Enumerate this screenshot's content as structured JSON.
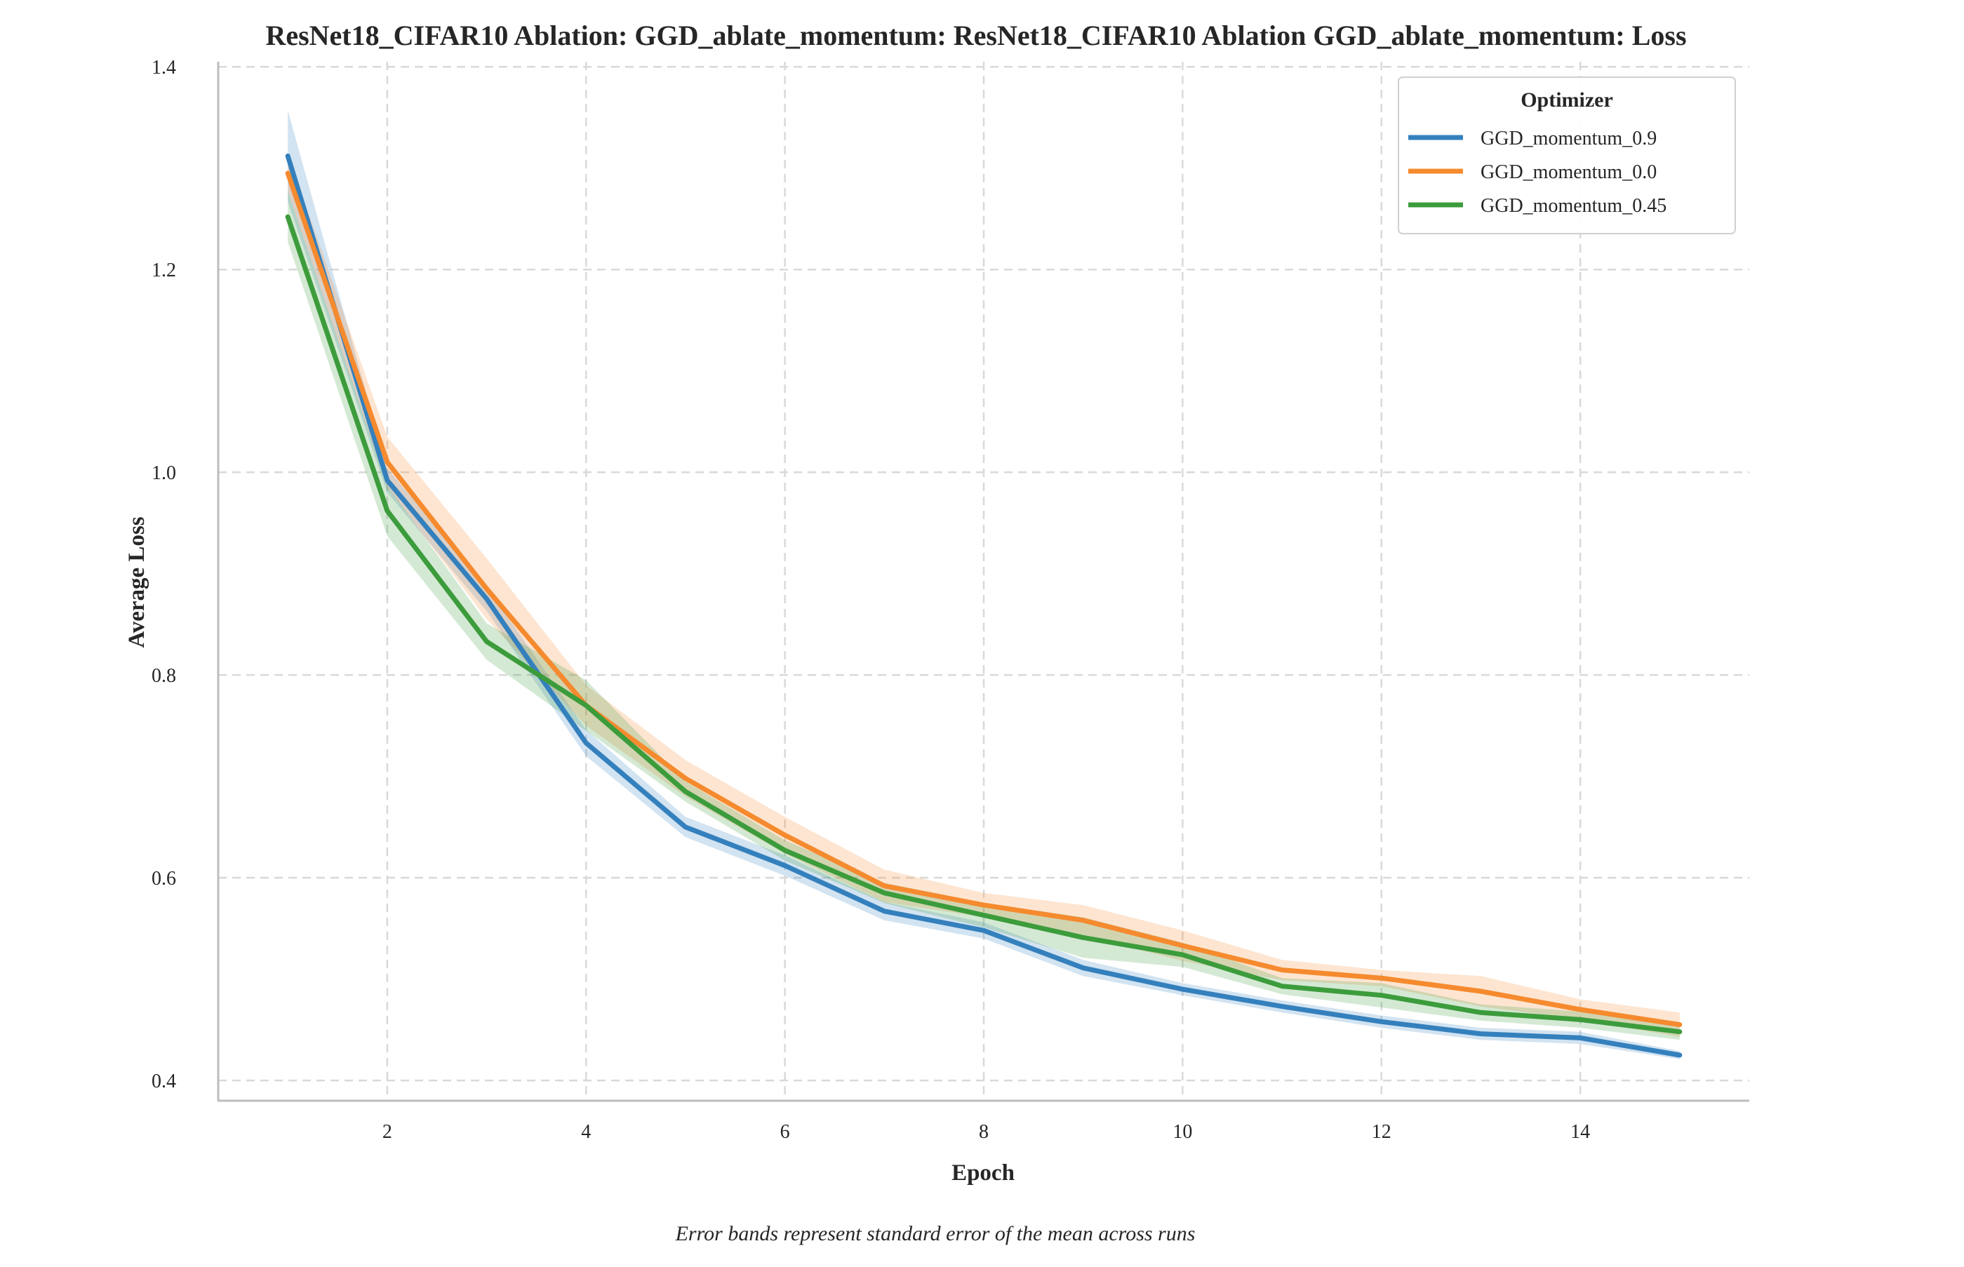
{
  "chart_data": {
    "type": "line",
    "title": "ResNet18_CIFAR10 Ablation: GGD_ablate_momentum: ResNet18_CIFAR10 Ablation GGD_ablate_momentum: Loss",
    "xlabel": "Epoch",
    "ylabel": "Average Loss",
    "footnote": "Error bands represent standard error of the mean across runs",
    "legend_title": "Optimizer",
    "legend_position": "top-right",
    "grid": true,
    "grid_style": "dashed",
    "xlim": [
      0.3,
      15.7
    ],
    "ylim": [
      0.38,
      1.405
    ],
    "xticks": [
      2,
      4,
      6,
      8,
      10,
      12,
      14
    ],
    "yticks": [
      0.4,
      0.6,
      0.8,
      1.0,
      1.2,
      1.4
    ],
    "ytick_labels": [
      "0.4",
      "0.6",
      "0.8",
      "1.0",
      "1.2",
      "1.4"
    ],
    "x": [
      1,
      2,
      3,
      4,
      5,
      6,
      7,
      8,
      9,
      10,
      11,
      12,
      13,
      14,
      15
    ],
    "series": [
      {
        "name": "GGD_momentum_0.9",
        "color": "#3480bd",
        "values": [
          1.312,
          0.992,
          0.875,
          0.733,
          0.65,
          0.612,
          0.567,
          0.548,
          0.511,
          0.49,
          0.473,
          0.458,
          0.446,
          0.442,
          0.425
        ],
        "error": [
          0.045,
          0.012,
          0.012,
          0.013,
          0.01,
          0.01,
          0.009,
          0.008,
          0.008,
          0.006,
          0.006,
          0.006,
          0.006,
          0.006,
          0.004
        ]
      },
      {
        "name": "GGD_momentum_0.0",
        "color": "#f58a2e",
        "values": [
          1.295,
          1.01,
          0.885,
          0.77,
          0.698,
          0.642,
          0.592,
          0.573,
          0.558,
          0.533,
          0.509,
          0.501,
          0.488,
          0.47,
          0.455
        ],
        "error": [
          0.018,
          0.025,
          0.03,
          0.02,
          0.018,
          0.018,
          0.016,
          0.012,
          0.015,
          0.015,
          0.01,
          0.008,
          0.015,
          0.01,
          0.012
        ]
      },
      {
        "name": "GGD_momentum_0.45",
        "color": "#3c9c3c",
        "values": [
          1.252,
          0.962,
          0.833,
          0.77,
          0.685,
          0.627,
          0.585,
          0.563,
          0.541,
          0.524,
          0.493,
          0.484,
          0.467,
          0.46,
          0.448
        ],
        "error": [
          0.025,
          0.025,
          0.018,
          0.025,
          0.01,
          0.01,
          0.01,
          0.012,
          0.02,
          0.012,
          0.008,
          0.012,
          0.008,
          0.008,
          0.008
        ]
      }
    ]
  }
}
